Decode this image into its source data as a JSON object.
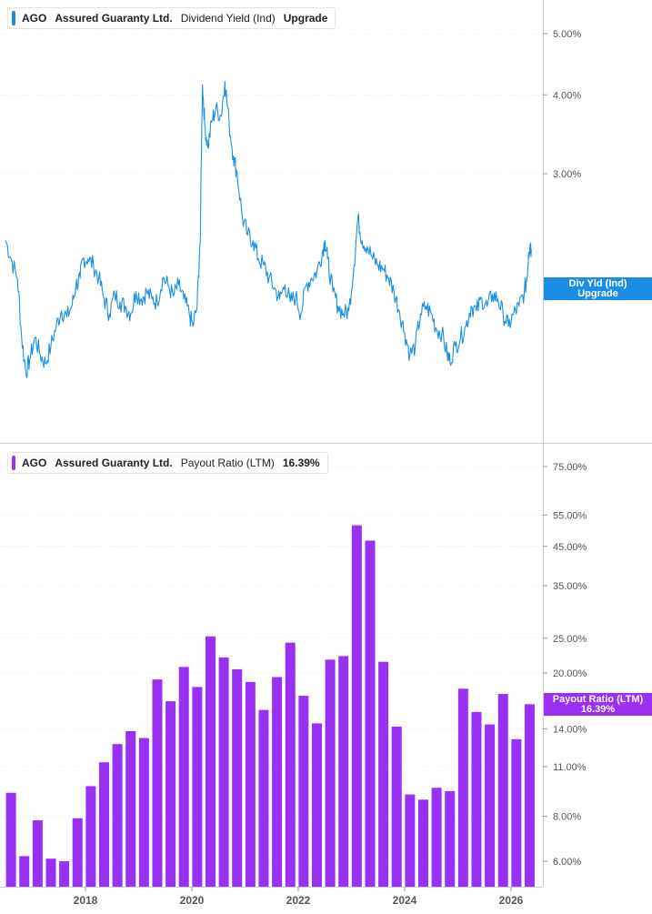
{
  "colors": {
    "yield": "#1a8ee6",
    "payout": "#9b30f5",
    "axis": "#555555",
    "grid": "#dddddd"
  },
  "top_legend": {
    "ticker": "AGO",
    "company": "Assured Guaranty Ltd.",
    "metric": "Dividend Yield (Ind)",
    "value": "Upgrade"
  },
  "bottom_legend": {
    "ticker": "AGO",
    "company": "Assured Guaranty Ltd.",
    "metric": "Payout Ratio (LTM)",
    "value": "16.39%"
  },
  "top_tag": {
    "line1": "Div Yld (Ind)",
    "line2": "Upgrade"
  },
  "bottom_tag": {
    "line1": "Payout Ratio (LTM)",
    "line2": "16.39%"
  },
  "chart_data": [
    {
      "type": "line",
      "series": [
        {
          "name": "Dividend Yield (Ind)"
        }
      ],
      "x_range": [
        2016.5,
        2026.5
      ],
      "yscale": "log",
      "y_ticks": [
        "5.00%",
        "4.00%",
        "3.00%"
      ],
      "y_tick_values": [
        5.0,
        4.0,
        3.0
      ],
      "points": [
        [
          2016.5,
          2.35
        ],
        [
          2016.6,
          2.2
        ],
        [
          2016.72,
          2.05
        ],
        [
          2016.8,
          1.65
        ],
        [
          2016.88,
          1.45
        ],
        [
          2016.95,
          1.52
        ],
        [
          2017.05,
          1.65
        ],
        [
          2017.15,
          1.55
        ],
        [
          2017.25,
          1.5
        ],
        [
          2017.35,
          1.6
        ],
        [
          2017.45,
          1.72
        ],
        [
          2017.55,
          1.82
        ],
        [
          2017.65,
          1.78
        ],
        [
          2017.75,
          1.86
        ],
        [
          2017.82,
          2.0
        ],
        [
          2017.9,
          2.05
        ],
        [
          2017.95,
          2.2
        ],
        [
          2018.05,
          2.2
        ],
        [
          2018.15,
          2.15
        ],
        [
          2018.25,
          2.05
        ],
        [
          2018.35,
          1.9
        ],
        [
          2018.45,
          1.8
        ],
        [
          2018.55,
          1.93
        ],
        [
          2018.65,
          1.88
        ],
        [
          2018.75,
          1.85
        ],
        [
          2018.85,
          1.8
        ],
        [
          2018.95,
          1.95
        ],
        [
          2019.05,
          1.9
        ],
        [
          2019.15,
          1.95
        ],
        [
          2019.25,
          1.9
        ],
        [
          2019.35,
          1.88
        ],
        [
          2019.45,
          2.05
        ],
        [
          2019.55,
          2.0
        ],
        [
          2019.65,
          1.92
        ],
        [
          2019.75,
          2.0
        ],
        [
          2019.85,
          1.9
        ],
        [
          2019.95,
          1.8
        ],
        [
          2020.02,
          1.72
        ],
        [
          2020.1,
          1.85
        ],
        [
          2020.16,
          2.4
        ],
        [
          2020.2,
          4.15
        ],
        [
          2020.24,
          3.6
        ],
        [
          2020.3,
          3.3
        ],
        [
          2020.38,
          3.65
        ],
        [
          2020.45,
          3.8
        ],
        [
          2020.55,
          3.7
        ],
        [
          2020.62,
          4.2
        ],
        [
          2020.7,
          3.6
        ],
        [
          2020.78,
          3.2
        ],
        [
          2020.85,
          3.0
        ],
        [
          2020.95,
          2.55
        ],
        [
          2021.05,
          2.4
        ],
        [
          2021.15,
          2.35
        ],
        [
          2021.25,
          2.2
        ],
        [
          2021.35,
          2.15
        ],
        [
          2021.45,
          2.05
        ],
        [
          2021.55,
          1.98
        ],
        [
          2021.65,
          1.9
        ],
        [
          2021.75,
          2.0
        ],
        [
          2021.85,
          1.88
        ],
        [
          2021.95,
          1.92
        ],
        [
          2022.05,
          1.8
        ],
        [
          2022.15,
          2.0
        ],
        [
          2022.25,
          2.05
        ],
        [
          2022.35,
          2.1
        ],
        [
          2022.45,
          2.25
        ],
        [
          2022.5,
          2.35
        ],
        [
          2022.55,
          2.2
        ],
        [
          2022.65,
          1.95
        ],
        [
          2022.75,
          1.85
        ],
        [
          2022.85,
          1.8
        ],
        [
          2022.95,
          1.82
        ],
        [
          2023.05,
          2.15
        ],
        [
          2023.12,
          2.55
        ],
        [
          2023.2,
          2.35
        ],
        [
          2023.3,
          2.3
        ],
        [
          2023.4,
          2.2
        ],
        [
          2023.5,
          2.15
        ],
        [
          2023.6,
          2.12
        ],
        [
          2023.7,
          2.05
        ],
        [
          2023.8,
          1.95
        ],
        [
          2023.9,
          1.82
        ],
        [
          2024.0,
          1.68
        ],
        [
          2024.1,
          1.55
        ],
        [
          2024.2,
          1.6
        ],
        [
          2024.3,
          1.8
        ],
        [
          2024.4,
          1.85
        ],
        [
          2024.5,
          1.8
        ],
        [
          2024.6,
          1.7
        ],
        [
          2024.7,
          1.68
        ],
        [
          2024.8,
          1.55
        ],
        [
          2024.85,
          1.52
        ],
        [
          2024.95,
          1.6
        ],
        [
          2025.05,
          1.65
        ],
        [
          2025.15,
          1.72
        ],
        [
          2025.25,
          1.85
        ],
        [
          2025.35,
          1.82
        ],
        [
          2025.45,
          1.9
        ],
        [
          2025.55,
          1.85
        ],
        [
          2025.65,
          1.93
        ],
        [
          2025.75,
          1.9
        ],
        [
          2025.85,
          1.8
        ],
        [
          2025.95,
          1.72
        ],
        [
          2026.05,
          1.8
        ],
        [
          2026.15,
          1.85
        ],
        [
          2026.25,
          1.95
        ],
        [
          2026.3,
          2.05
        ],
        [
          2026.33,
          2.25
        ],
        [
          2026.36,
          2.32
        ],
        [
          2026.38,
          2.28
        ]
      ]
    },
    {
      "type": "bar",
      "series": [
        {
          "name": "Payout Ratio (LTM)"
        }
      ],
      "yscale": "log",
      "y_ticks": [
        "75.00%",
        "55.00%",
        "45.00%",
        "35.00%",
        "25.00%",
        "20.00%",
        "14.00%",
        "11.00%",
        "8.00%",
        "6.00%"
      ],
      "y_tick_values": [
        75,
        55,
        45,
        35,
        25,
        20,
        14,
        11,
        8,
        6
      ],
      "x_ticks": [
        "2018",
        "2020",
        "2022",
        "2024",
        "2026"
      ],
      "x_tick_values": [
        2018,
        2020,
        2022,
        2024,
        2026
      ],
      "x": [
        2016.6,
        2016.85,
        2017.1,
        2017.35,
        2017.6,
        2017.85,
        2018.1,
        2018.35,
        2018.6,
        2018.85,
        2019.1,
        2019.35,
        2019.6,
        2019.85,
        2020.1,
        2020.35,
        2020.6,
        2020.85,
        2021.1,
        2021.35,
        2021.6,
        2021.85,
        2022.1,
        2022.35,
        2022.6,
        2022.85,
        2023.1,
        2023.35,
        2023.6,
        2023.85,
        2024.1,
        2024.35,
        2024.6,
        2024.85,
        2025.1,
        2025.35,
        2025.6,
        2025.85,
        2026.1,
        2026.35
      ],
      "values": [
        9.3,
        6.2,
        7.8,
        6.1,
        6.0,
        7.9,
        9.7,
        11.3,
        12.7,
        13.8,
        13.2,
        19.2,
        16.7,
        20.8,
        18.3,
        25.3,
        22.1,
        20.5,
        18.9,
        15.8,
        19.5,
        24.3,
        17.3,
        14.5,
        21.8,
        22.3,
        51.5,
        46.7,
        21.5,
        14.2,
        9.2,
        8.9,
        9.6,
        9.4,
        18.1,
        15.6,
        14.4,
        17.5,
        13.1,
        16.39
      ]
    }
  ]
}
